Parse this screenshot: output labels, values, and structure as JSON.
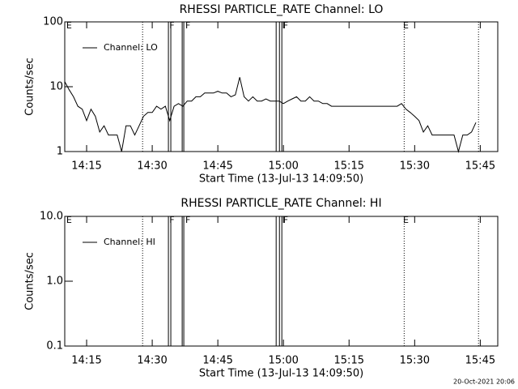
{
  "chart_data": [
    {
      "type": "line",
      "title": "RHESSI PARTICLE_RATE Channel: LO",
      "xlabel": "Start Time (13-Jul-13 14:09:50)",
      "ylabel": "Counts/sec",
      "xlim": [
        "14:10",
        "15:49"
      ],
      "xticks": [
        "14:15",
        "14:30",
        "14:45",
        "15:00",
        "15:15",
        "15:30",
        "15:45"
      ],
      "ylim": [
        1,
        100
      ],
      "yticks": [
        1,
        10,
        100
      ],
      "log_y": true,
      "legend": "upper left",
      "x": [
        "14:10",
        "14:11",
        "14:12",
        "14:13",
        "14:14",
        "14:15",
        "14:16",
        "14:17",
        "14:18",
        "14:19",
        "14:20",
        "14:21",
        "14:22",
        "14:23",
        "14:24",
        "14:25",
        "14:26",
        "14:27",
        "14:28",
        "14:29",
        "14:30",
        "14:31",
        "14:32",
        "14:33",
        "14:34",
        "14:35",
        "14:36",
        "14:37",
        "14:38",
        "14:39",
        "14:40",
        "14:41",
        "14:42",
        "14:43",
        "14:44",
        "14:45",
        "14:46",
        "14:47",
        "14:48",
        "14:49",
        "14:50",
        "14:51",
        "14:52",
        "14:53",
        "14:54",
        "14:55",
        "14:56",
        "14:57",
        "14:58",
        "14:59",
        "15:00",
        "15:01",
        "15:02",
        "15:03",
        "15:04",
        "15:05",
        "15:06",
        "15:07",
        "15:08",
        "15:09",
        "15:10",
        "15:11",
        "15:12",
        "15:14",
        "15:16",
        "15:18",
        "15:20",
        "15:22",
        "15:24",
        "15:26",
        "15:27",
        "15:28",
        "15:29",
        "15:30",
        "15:31",
        "15:32",
        "15:33",
        "15:34",
        "15:36",
        "15:38",
        "15:39",
        "15:40",
        "15:41",
        "15:42",
        "15:43",
        "15:44"
      ],
      "series": [
        {
          "name": "Channel: LO",
          "color": "#000000",
          "values": [
            12,
            9,
            7,
            5,
            4.5,
            3,
            4.5,
            3.5,
            2,
            2.5,
            1.8,
            1.8,
            1.8,
            1,
            2.5,
            2.5,
            1.8,
            2.5,
            3.5,
            4,
            4,
            5,
            4.5,
            5,
            3,
            5,
            5.5,
            5,
            6,
            6,
            7,
            7,
            8,
            8,
            8,
            8.5,
            8,
            8,
            7,
            7.5,
            14,
            7,
            6,
            7,
            6,
            6,
            6.5,
            6,
            6,
            6,
            5.5,
            6,
            6.5,
            7,
            6,
            6,
            7,
            6,
            6,
            5.5,
            5.5,
            5,
            5,
            5,
            5,
            5,
            5,
            5,
            5,
            5,
            5.5,
            4.5,
            4,
            3.5,
            3,
            2,
            2.5,
            1.8,
            1.8,
            1.8,
            1.8,
            1,
            1.8,
            1.8,
            2,
            2.8
          ]
        }
      ],
      "vlines": [
        {
          "x": "14:27:48",
          "style": "dotted"
        },
        {
          "x": "14:33:42",
          "style": "solid"
        },
        {
          "x": "14:34:15",
          "style": "solid"
        },
        {
          "x": "14:36:51",
          "style": "solid"
        },
        {
          "x": "14:37:13",
          "style": "solid"
        },
        {
          "x": "14:58:20",
          "style": "solid"
        },
        {
          "x": "14:59:05",
          "style": "solid"
        },
        {
          "x": "14:59:38",
          "style": "solid"
        },
        {
          "x": "15:27:36",
          "style": "dotted"
        },
        {
          "x": "15:44:36",
          "style": "dotted"
        }
      ],
      "annotations": [
        {
          "text": "E",
          "x": "14:11"
        },
        {
          "text": "F",
          "x": "14:34:30"
        },
        {
          "text": "F",
          "x": "14:38:10"
        },
        {
          "text": "F",
          "x": "15:00:30"
        },
        {
          "text": "E",
          "x": "15:28"
        }
      ]
    },
    {
      "type": "line",
      "title": "RHESSI PARTICLE_RATE Channel: HI",
      "xlabel": "Start Time (13-Jul-13 14:09:50)",
      "ylabel": "Counts/sec",
      "xlim": [
        "14:10",
        "15:49"
      ],
      "xticks": [
        "14:15",
        "14:30",
        "14:45",
        "15:00",
        "15:15",
        "15:30",
        "15:45"
      ],
      "ylim": [
        0.1,
        10
      ],
      "yticks": [
        0.1,
        {
          "value": 1,
          "label": "1.0"
        },
        {
          "value": 10,
          "label": "10.0"
        }
      ],
      "log_y": true,
      "legend": "upper left",
      "x": [],
      "series": [
        {
          "name": "Channel: HI",
          "color": "#000000",
          "values": []
        }
      ],
      "vlines": [
        {
          "x": "14:27:48",
          "style": "dotted"
        },
        {
          "x": "14:33:42",
          "style": "solid"
        },
        {
          "x": "14:34:15",
          "style": "solid"
        },
        {
          "x": "14:36:51",
          "style": "solid"
        },
        {
          "x": "14:37:13",
          "style": "solid"
        },
        {
          "x": "14:58:20",
          "style": "solid"
        },
        {
          "x": "14:59:05",
          "style": "solid"
        },
        {
          "x": "14:59:38",
          "style": "solid"
        },
        {
          "x": "15:27:36",
          "style": "dotted"
        },
        {
          "x": "15:44:36",
          "style": "dotted"
        }
      ],
      "annotations": [
        {
          "text": "E",
          "x": "14:11"
        },
        {
          "text": "F",
          "x": "14:34:30"
        },
        {
          "text": "F",
          "x": "14:38:10"
        },
        {
          "text": "F",
          "x": "15:00:30"
        },
        {
          "text": "E",
          "x": "15:28"
        }
      ]
    }
  ],
  "footer": "20-Oct-2021 20:06"
}
